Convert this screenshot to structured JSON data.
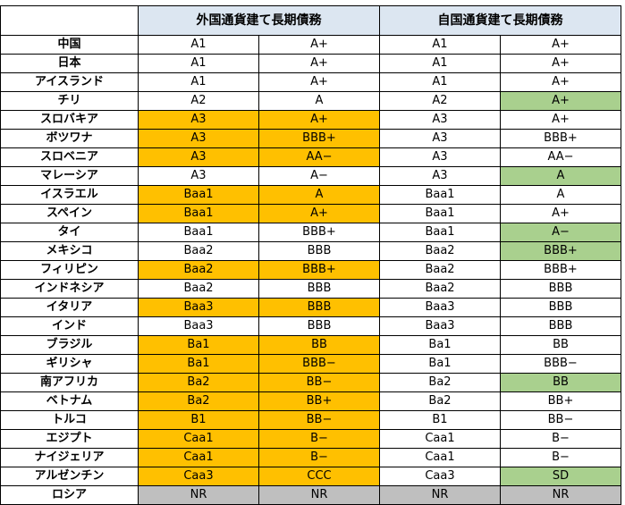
{
  "header": {
    "group_foreign": "外国通貨建て長期債務",
    "group_domestic": "自国通貨建て長期債務"
  },
  "colors": {
    "orange": "#ffc000",
    "green": "#a9d08e",
    "gray": "#bfbfbf",
    "header_blue": "#dce6f1"
  },
  "rows": [
    {
      "country": "中国",
      "c1": "A1",
      "c2": "A+",
      "c3": "A1",
      "c4": "A+",
      "hl1": "",
      "hl2": "",
      "hl3": "",
      "hl4": ""
    },
    {
      "country": "日本",
      "c1": "A1",
      "c2": "A+",
      "c3": "A1",
      "c4": "A+",
      "hl1": "",
      "hl2": "",
      "hl3": "",
      "hl4": ""
    },
    {
      "country": "アイスランド",
      "c1": "A1",
      "c2": "A+",
      "c3": "A1",
      "c4": "A+",
      "hl1": "",
      "hl2": "",
      "hl3": "",
      "hl4": ""
    },
    {
      "country": "チリ",
      "c1": "A2",
      "c2": "A",
      "c3": "A2",
      "c4": "A+",
      "hl1": "",
      "hl2": "",
      "hl3": "",
      "hl4": "green"
    },
    {
      "country": "スロバキア",
      "c1": "A3",
      "c2": "A+",
      "c3": "A3",
      "c4": "A+",
      "hl1": "orange",
      "hl2": "orange",
      "hl3": "",
      "hl4": ""
    },
    {
      "country": "ボツワナ",
      "c1": "A3",
      "c2": "BBB+",
      "c3": "A3",
      "c4": "BBB+",
      "hl1": "orange",
      "hl2": "orange",
      "hl3": "",
      "hl4": ""
    },
    {
      "country": "スロベニア",
      "c1": "A3",
      "c2": "AA−",
      "c3": "A3",
      "c4": "AA−",
      "hl1": "orange",
      "hl2": "orange",
      "hl3": "",
      "hl4": ""
    },
    {
      "country": "マレーシア",
      "c1": "A3",
      "c2": "A−",
      "c3": "A3",
      "c4": "A",
      "hl1": "",
      "hl2": "",
      "hl3": "",
      "hl4": "green"
    },
    {
      "country": "イスラエル",
      "c1": "Baa1",
      "c2": "A",
      "c3": "Baa1",
      "c4": "A",
      "hl1": "orange",
      "hl2": "orange",
      "hl3": "",
      "hl4": ""
    },
    {
      "country": "スペイン",
      "c1": "Baa1",
      "c2": "A+",
      "c3": "Baa1",
      "c4": "A+",
      "hl1": "orange",
      "hl2": "orange",
      "hl3": "",
      "hl4": ""
    },
    {
      "country": "タイ",
      "c1": "Baa1",
      "c2": "BBB+",
      "c3": "Baa1",
      "c4": "A−",
      "hl1": "",
      "hl2": "",
      "hl3": "",
      "hl4": "green"
    },
    {
      "country": "メキシコ",
      "c1": "Baa2",
      "c2": "BBB",
      "c3": "Baa2",
      "c4": "BBB+",
      "hl1": "",
      "hl2": "",
      "hl3": "",
      "hl4": "green"
    },
    {
      "country": "フィリピン",
      "c1": "Baa2",
      "c2": "BBB+",
      "c3": "Baa2",
      "c4": "BBB+",
      "hl1": "orange",
      "hl2": "orange",
      "hl3": "",
      "hl4": ""
    },
    {
      "country": "インドネシア",
      "c1": "Baa2",
      "c2": "BBB",
      "c3": "Baa2",
      "c4": "BBB",
      "hl1": "",
      "hl2": "",
      "hl3": "",
      "hl4": ""
    },
    {
      "country": "イタリア",
      "c1": "Baa3",
      "c2": "BBB",
      "c3": "Baa3",
      "c4": "BBB",
      "hl1": "orange",
      "hl2": "orange",
      "hl3": "",
      "hl4": ""
    },
    {
      "country": "インド",
      "c1": "Baa3",
      "c2": "BBB",
      "c3": "Baa3",
      "c4": "BBB",
      "hl1": "",
      "hl2": "",
      "hl3": "",
      "hl4": ""
    },
    {
      "country": "ブラジル",
      "c1": "Ba1",
      "c2": "BB",
      "c3": "Ba1",
      "c4": "BB",
      "hl1": "orange",
      "hl2": "orange",
      "hl3": "",
      "hl4": ""
    },
    {
      "country": "ギリシャ",
      "c1": "Ba1",
      "c2": "BBB−",
      "c3": "Ba1",
      "c4": "BBB−",
      "hl1": "orange",
      "hl2": "orange",
      "hl3": "",
      "hl4": ""
    },
    {
      "country": "南アフリカ",
      "c1": "Ba2",
      "c2": "BB−",
      "c3": "Ba2",
      "c4": "BB",
      "hl1": "orange",
      "hl2": "orange",
      "hl3": "",
      "hl4": "green"
    },
    {
      "country": "ベトナム",
      "c1": "Ba2",
      "c2": "BB+",
      "c3": "Ba2",
      "c4": "BB+",
      "hl1": "orange",
      "hl2": "orange",
      "hl3": "",
      "hl4": ""
    },
    {
      "country": "トルコ",
      "c1": "B1",
      "c2": "BB−",
      "c3": "B1",
      "c4": "BB−",
      "hl1": "orange",
      "hl2": "orange",
      "hl3": "",
      "hl4": ""
    },
    {
      "country": "エジプト",
      "c1": "Caa1",
      "c2": "B−",
      "c3": "Caa1",
      "c4": "B−",
      "hl1": "orange",
      "hl2": "orange",
      "hl3": "",
      "hl4": ""
    },
    {
      "country": "ナイジェリア",
      "c1": "Caa1",
      "c2": "B−",
      "c3": "Caa1",
      "c4": "B−",
      "hl1": "orange",
      "hl2": "orange",
      "hl3": "",
      "hl4": ""
    },
    {
      "country": "アルゼンチン",
      "c1": "Caa3",
      "c2": "CCC",
      "c3": "Caa3",
      "c4": "SD",
      "hl1": "orange",
      "hl2": "orange",
      "hl3": "",
      "hl4": "green"
    },
    {
      "country": "ロシア",
      "c1": "NR",
      "c2": "NR",
      "c3": "NR",
      "c4": "NR",
      "hl1": "gray",
      "hl2": "gray",
      "hl3": "gray",
      "hl4": "gray"
    }
  ]
}
